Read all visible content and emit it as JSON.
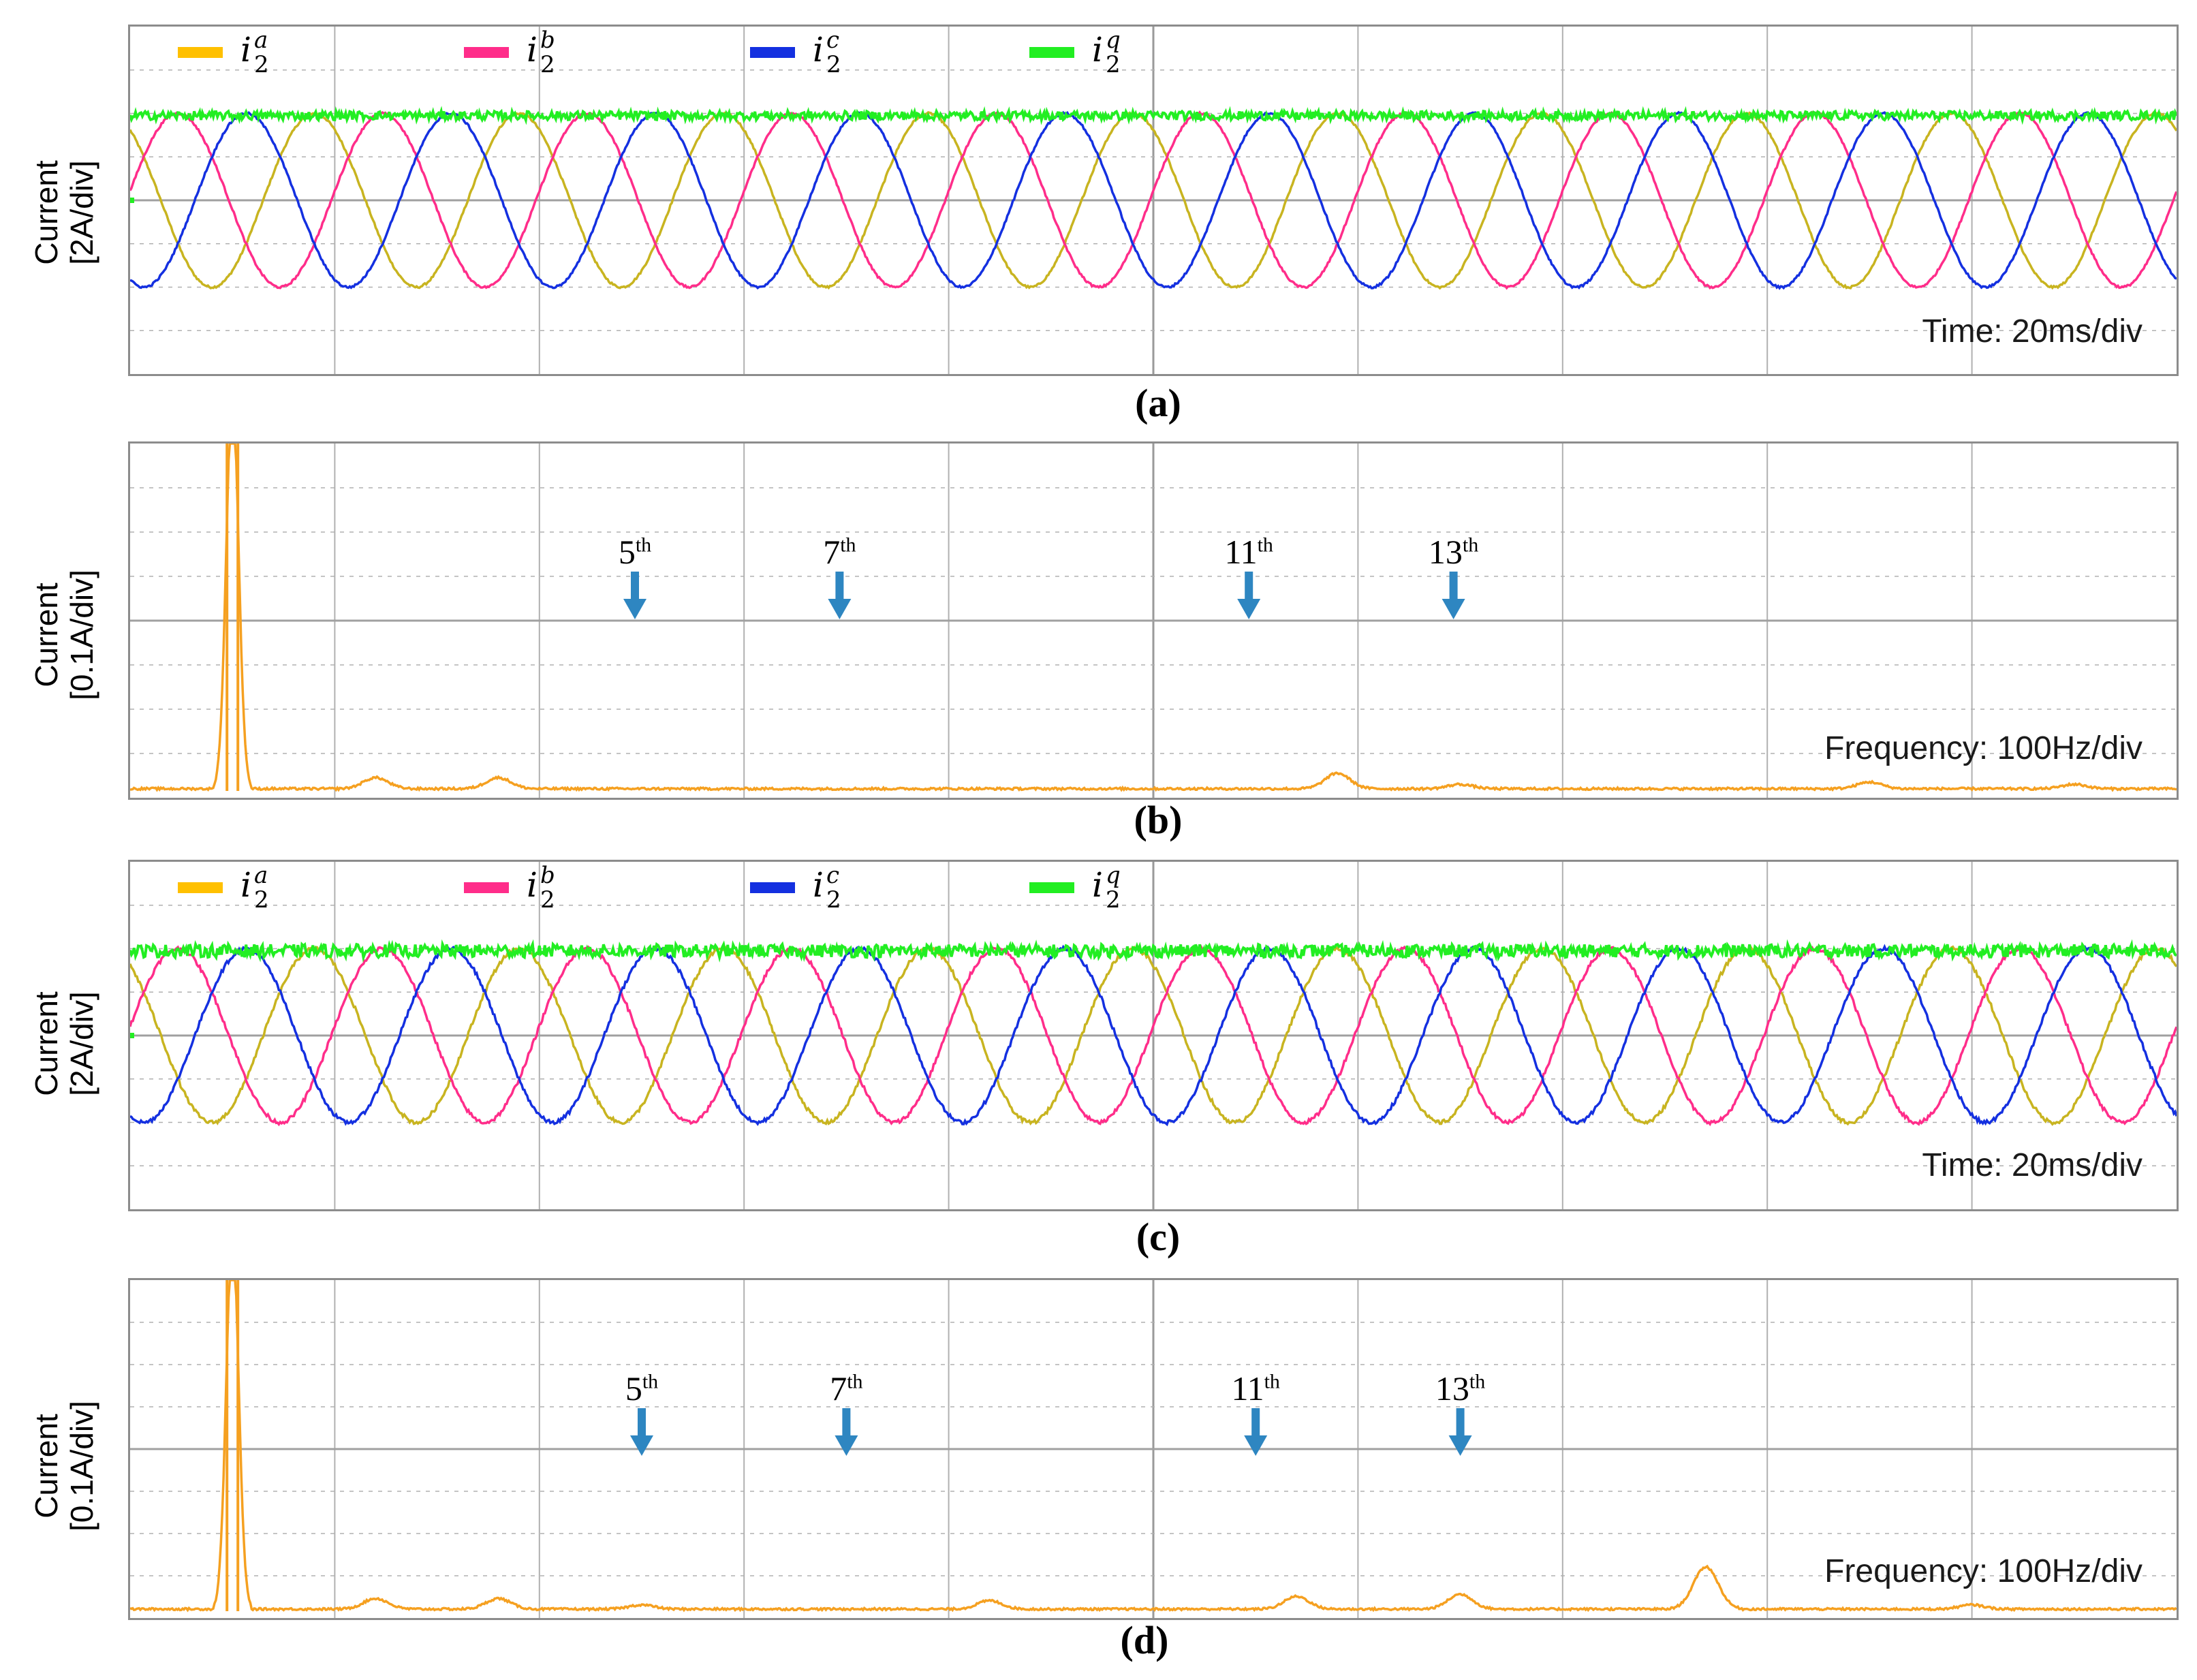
{
  "colors": {
    "i2a": "#c8b420",
    "i2a_legend": "#ffc000",
    "i2b": "#ff2d8a",
    "i2c": "#1430e0",
    "i2q": "#22ee22",
    "spectrum": "#f5a020",
    "grid": "#b0b0b0",
    "arrow": "#2e86c1"
  },
  "panels": [
    {
      "id": "a",
      "caption": "(a)",
      "ylabel_line1": "Current",
      "ylabel_line2": "[2A/div]",
      "scale_note": "Time: 20ms/div",
      "legend": [
        {
          "base": "i",
          "sub": "2",
          "sup": "a",
          "color_key": "i2a_legend"
        },
        {
          "base": "i",
          "sub": "2",
          "sup": "b",
          "color_key": "i2b"
        },
        {
          "base": "i",
          "sub": "2",
          "sup": "c",
          "color_key": "i2c"
        },
        {
          "base": "i",
          "sub": "2",
          "sup": "q",
          "color_key": "i2q"
        }
      ]
    },
    {
      "id": "b",
      "caption": "(b)",
      "ylabel_line1": "Current",
      "ylabel_line2": "[0.1A/div]",
      "scale_note": "Frequency: 100Hz/div",
      "harmonics": [
        {
          "n": "5",
          "sup": "th"
        },
        {
          "n": "7",
          "sup": "th"
        },
        {
          "n": "11",
          "sup": "th"
        },
        {
          "n": "13",
          "sup": "th"
        }
      ]
    },
    {
      "id": "c",
      "caption": "(c)",
      "ylabel_line1": "Current",
      "ylabel_line2": "[2A/div]",
      "scale_note": "Time: 20ms/div",
      "legend": [
        {
          "base": "i",
          "sub": "2",
          "sup": "a",
          "color_key": "i2a_legend"
        },
        {
          "base": "i",
          "sub": "2",
          "sup": "b",
          "color_key": "i2b"
        },
        {
          "base": "i",
          "sub": "2",
          "sup": "c",
          "color_key": "i2c"
        },
        {
          "base": "i",
          "sub": "2",
          "sup": "q",
          "color_key": "i2q"
        }
      ]
    },
    {
      "id": "d",
      "caption": "(d)",
      "ylabel_line1": "Current",
      "ylabel_line2": "[0.1A/div]",
      "scale_note": "Frequency: 100Hz/div",
      "harmonics": [
        {
          "n": "5",
          "sup": "th"
        },
        {
          "n": "7",
          "sup": "th"
        },
        {
          "n": "11",
          "sup": "th"
        },
        {
          "n": "13",
          "sup": "th"
        }
      ]
    }
  ],
  "chart_data": [
    {
      "type": "line",
      "panel": "a",
      "x_divisions": 10,
      "y_divisions": 8,
      "x_unit": "20ms/div",
      "y_unit": "2A/div",
      "grid": true,
      "series": [
        {
          "name": "i2a",
          "kind": "sine",
          "amplitude_div": 2.0,
          "offset_div": 0,
          "period_div": 1.0,
          "phase_deg": 0
        },
        {
          "name": "i2b",
          "kind": "sine",
          "amplitude_div": 2.0,
          "offset_div": 0,
          "period_div": 1.0,
          "phase_deg": -120
        },
        {
          "name": "i2c",
          "kind": "sine",
          "amplitude_div": 2.0,
          "offset_div": 0,
          "period_div": 1.0,
          "phase_deg": 120
        },
        {
          "name": "i2q",
          "kind": "dc",
          "offset_div": 1.95,
          "noise_div": 0.04
        }
      ]
    },
    {
      "type": "line",
      "panel": "b",
      "x_divisions": 10,
      "y_divisions": 8,
      "x_unit": "100Hz/div",
      "y_unit": "0.1A/div",
      "grid": true,
      "fundamental_hz": 50,
      "fundamental_clipped": true,
      "peaks": [
        {
          "freq_hz": 50,
          "amp_div": 9.0
        },
        {
          "freq_hz": 120,
          "amp_div": 0.25
        },
        {
          "freq_hz": 180,
          "amp_div": 0.25
        },
        {
          "freq_hz": 590,
          "amp_div": 0.35
        },
        {
          "freq_hz": 650,
          "amp_div": 0.1
        },
        {
          "freq_hz": 850,
          "amp_div": 0.15
        },
        {
          "freq_hz": 950,
          "amp_div": 0.1
        }
      ],
      "harmonic_arrows_hz": [
        250,
        350,
        550,
        650
      ]
    },
    {
      "type": "line",
      "panel": "c",
      "x_divisions": 10,
      "y_divisions": 8,
      "x_unit": "20ms/div",
      "y_unit": "2A/div",
      "grid": true,
      "series": [
        {
          "name": "i2a",
          "kind": "sine",
          "amplitude_div": 2.0,
          "offset_div": 0,
          "period_div": 1.0,
          "phase_deg": 0
        },
        {
          "name": "i2b",
          "kind": "sine",
          "amplitude_div": 2.0,
          "offset_div": 0,
          "period_div": 1.0,
          "phase_deg": -120
        },
        {
          "name": "i2c",
          "kind": "sine",
          "amplitude_div": 2.0,
          "offset_div": 0,
          "period_div": 1.0,
          "phase_deg": 120
        },
        {
          "name": "i2q",
          "kind": "dc",
          "offset_div": 1.95,
          "noise_div": 0.06
        }
      ]
    },
    {
      "type": "line",
      "panel": "d",
      "x_divisions": 10,
      "y_divisions": 8,
      "x_unit": "100Hz/div",
      "y_unit": "0.1A/div",
      "grid": true,
      "fundamental_hz": 50,
      "fundamental_clipped": true,
      "peaks": [
        {
          "freq_hz": 50,
          "amp_div": 9.0
        },
        {
          "freq_hz": 120,
          "amp_div": 0.25
        },
        {
          "freq_hz": 180,
          "amp_div": 0.25
        },
        {
          "freq_hz": 250,
          "amp_div": 0.1
        },
        {
          "freq_hz": 420,
          "amp_div": 0.2
        },
        {
          "freq_hz": 570,
          "amp_div": 0.3
        },
        {
          "freq_hz": 650,
          "amp_div": 0.35
        },
        {
          "freq_hz": 770,
          "amp_div": 1.0
        },
        {
          "freq_hz": 900,
          "amp_div": 0.1
        }
      ],
      "harmonic_arrows_hz": [
        250,
        350,
        550,
        650
      ]
    }
  ]
}
